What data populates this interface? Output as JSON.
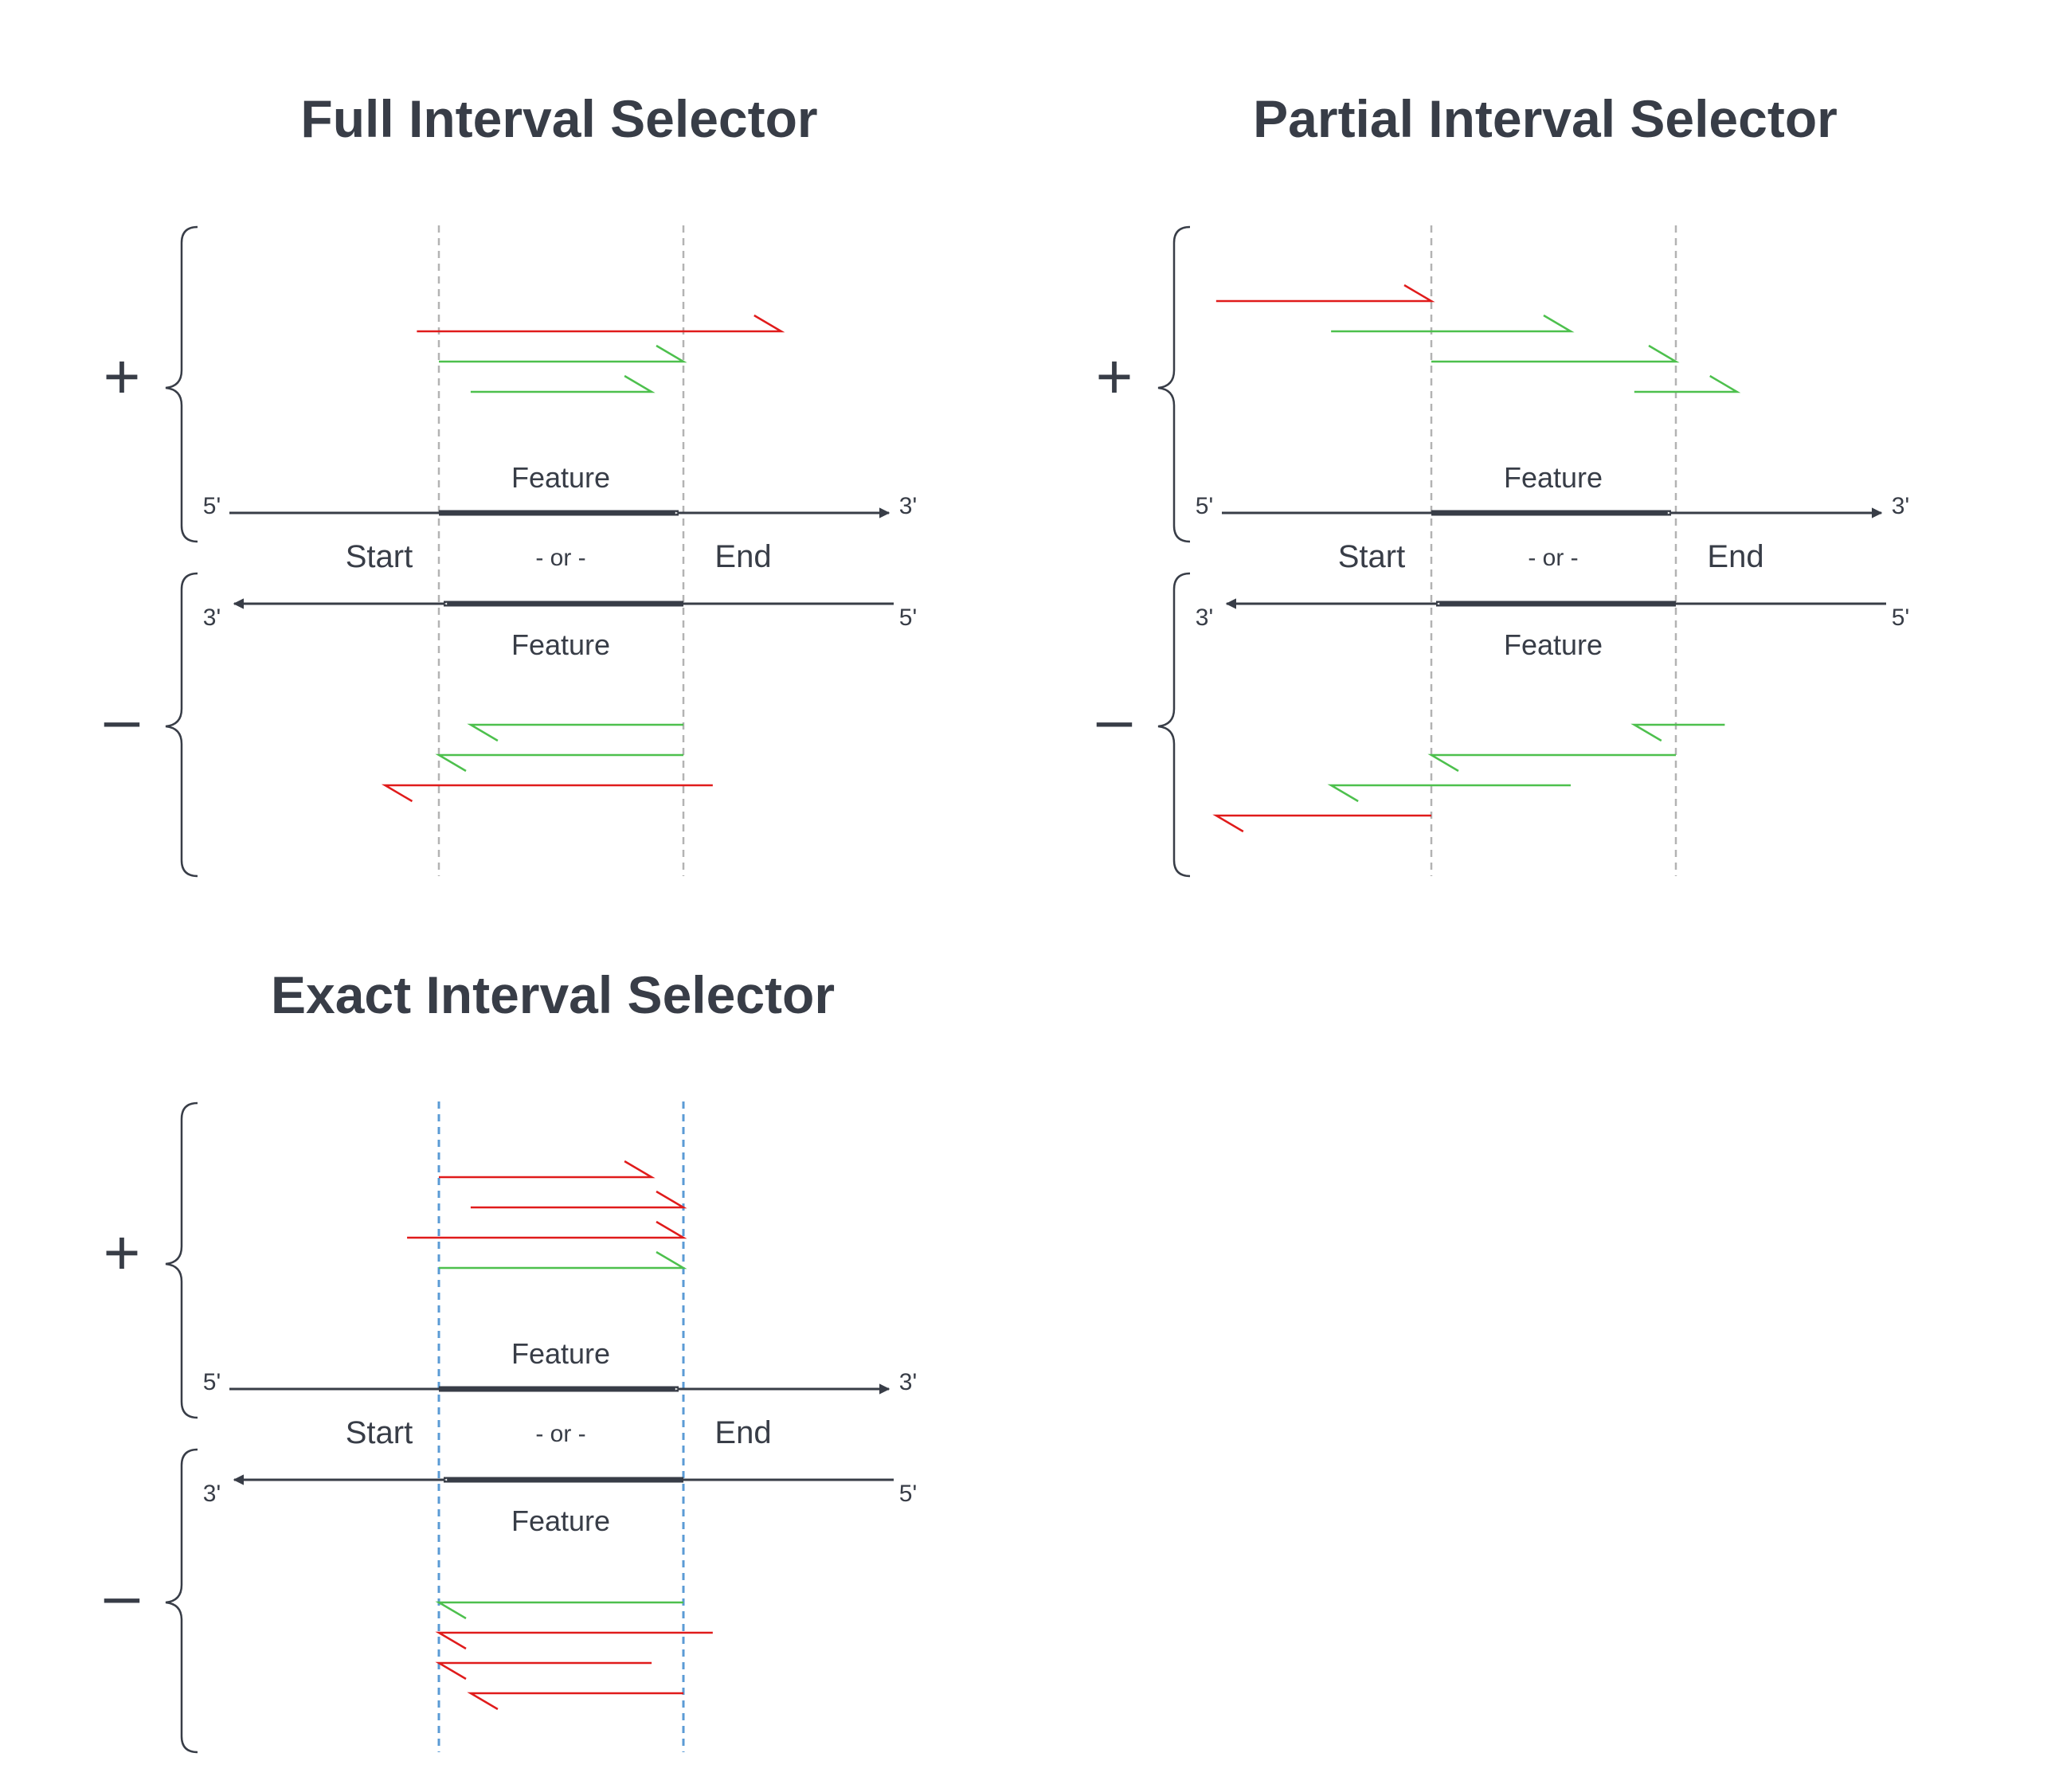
{
  "colors": {
    "ink": "#383d47",
    "grid": "#b3b3b3",
    "exact_grid": "#5b9bd5",
    "match": "#4dc04d",
    "nomatch": "#e01b1b"
  },
  "labels": {
    "feature": "Feature",
    "start": "Start",
    "end": "End",
    "or": "- or -",
    "five_prime": "5'",
    "three_prime": "3'",
    "plus": "+",
    "minus": "–"
  },
  "panels": [
    {
      "key": "full",
      "title": "Full Interval Selector",
      "plus_reads": [
        {
          "from": 0.91,
          "to": 2.4,
          "status": "nomatch"
        },
        {
          "from": 1.0,
          "to": 2.0,
          "status": "match"
        },
        {
          "from": 1.13,
          "to": 1.87,
          "status": "match"
        }
      ],
      "minus_reads": [
        {
          "from": 2.0,
          "to": 1.13,
          "status": "match"
        },
        {
          "from": 2.0,
          "to": 1.0,
          "status": "match"
        },
        {
          "from": 2.12,
          "to": 0.78,
          "status": "nomatch"
        }
      ]
    },
    {
      "key": "partial",
      "title": "Partial Interval Selector",
      "plus_reads": [
        {
          "from": 0.12,
          "to": 1.0,
          "status": "nomatch"
        },
        {
          "from": 0.59,
          "to": 1.57,
          "status": "match"
        },
        {
          "from": 1.0,
          "to": 2.0,
          "status": "match"
        },
        {
          "from": 1.83,
          "to": 2.25,
          "status": "match"
        }
      ],
      "minus_reads": [
        {
          "from": 2.2,
          "to": 1.83,
          "status": "match"
        },
        {
          "from": 2.0,
          "to": 1.0,
          "status": "match"
        },
        {
          "from": 1.57,
          "to": 0.59,
          "status": "match"
        },
        {
          "from": 1.0,
          "to": 0.12,
          "status": "nomatch"
        }
      ]
    },
    {
      "key": "exact",
      "title": "Exact Interval Selector",
      "plus_reads": [
        {
          "from": 1.0,
          "to": 1.87,
          "status": "nomatch"
        },
        {
          "from": 1.13,
          "to": 2.0,
          "status": "nomatch"
        },
        {
          "from": 0.87,
          "to": 2.0,
          "status": "nomatch"
        },
        {
          "from": 1.0,
          "to": 2.0,
          "status": "match"
        }
      ],
      "minus_reads": [
        {
          "from": 2.0,
          "to": 1.0,
          "status": "match"
        },
        {
          "from": 2.12,
          "to": 1.0,
          "status": "nomatch"
        },
        {
          "from": 1.87,
          "to": 1.0,
          "status": "nomatch"
        },
        {
          "from": 2.0,
          "to": 1.13,
          "status": "nomatch"
        }
      ]
    }
  ]
}
